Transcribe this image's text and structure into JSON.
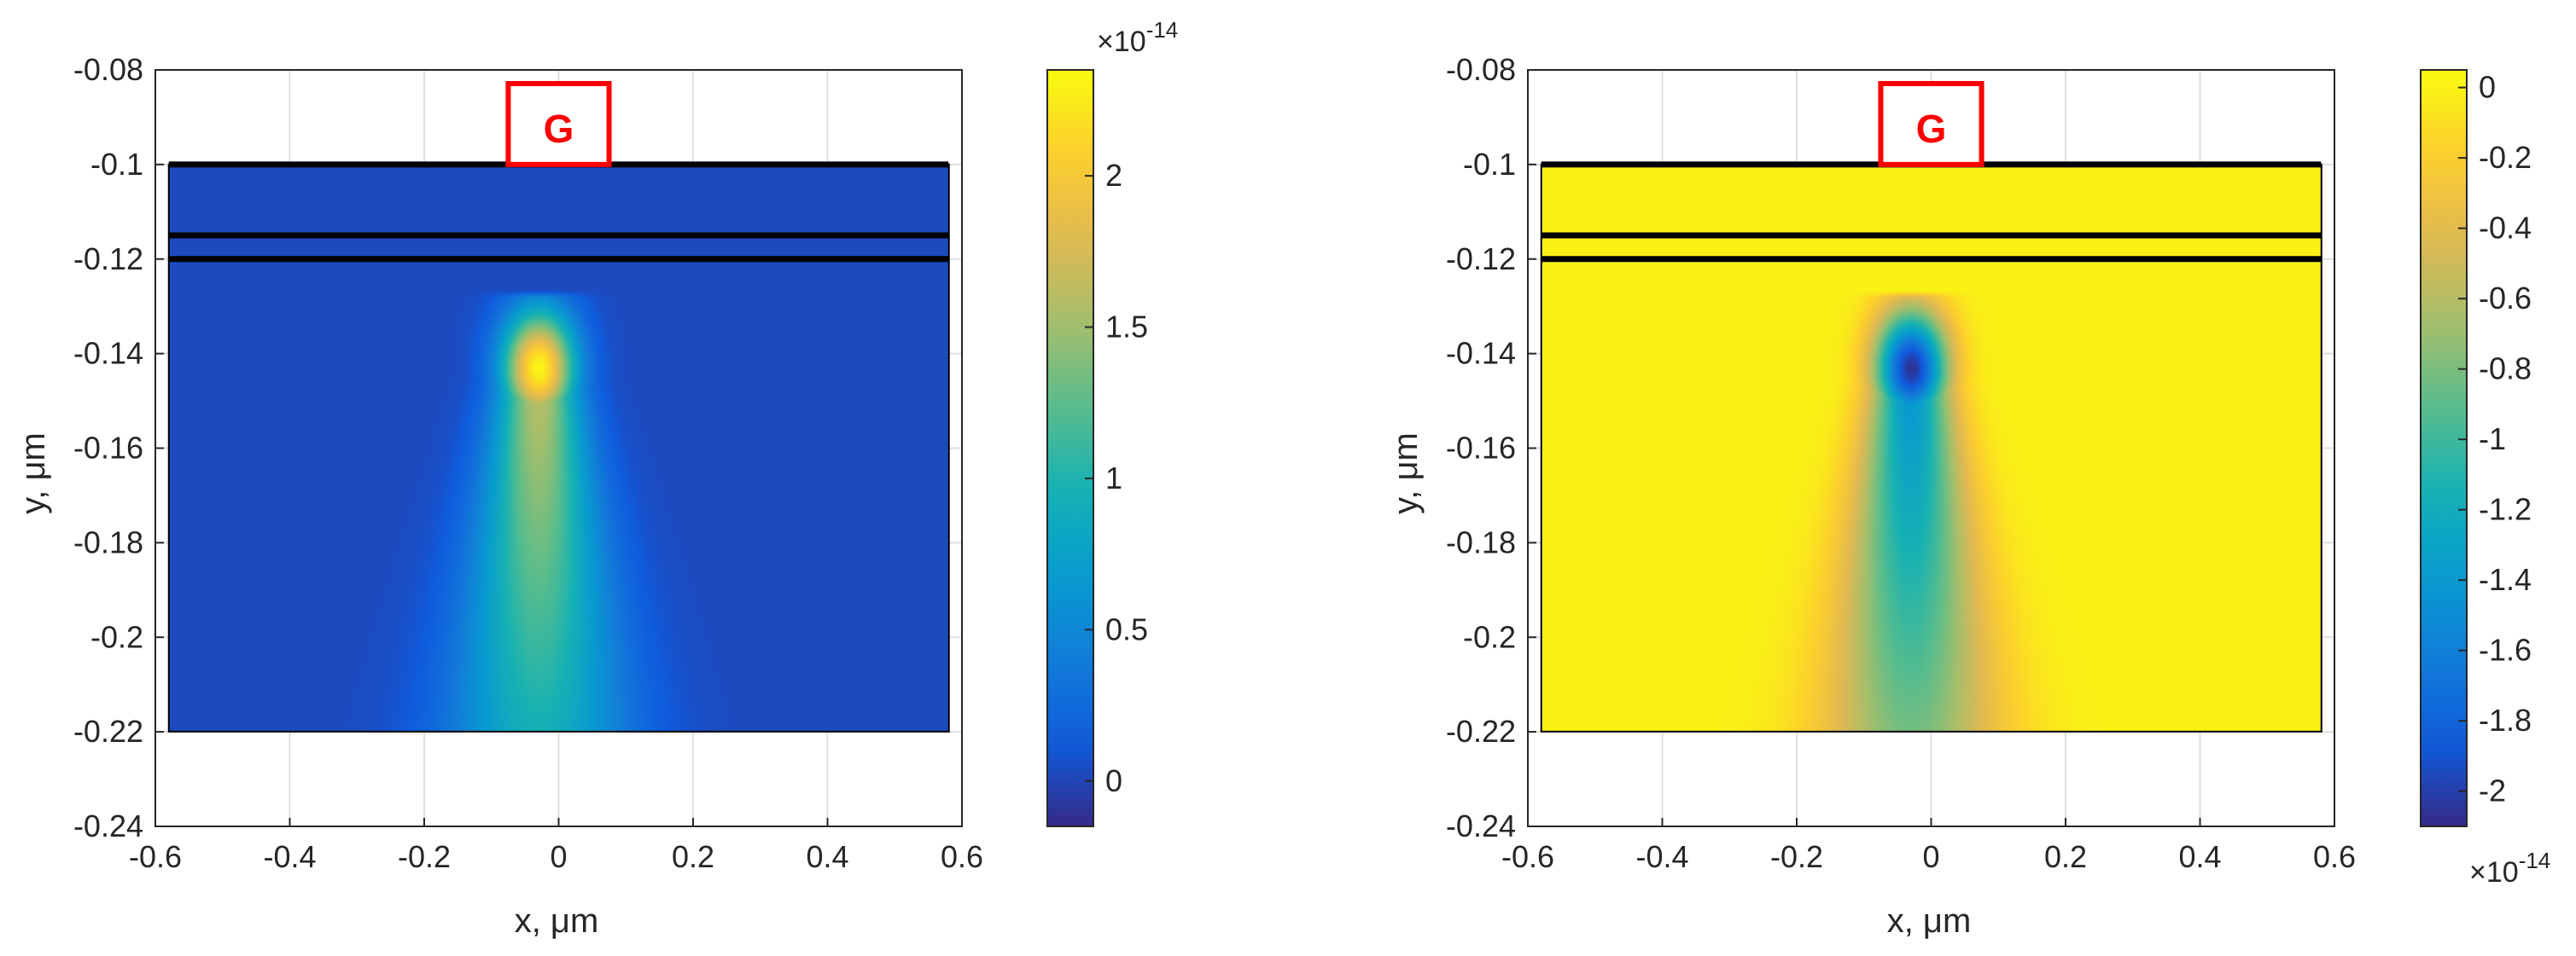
{
  "chart_data": [
    {
      "type": "heatmap",
      "title": "",
      "xlabel": "x, μm",
      "ylabel": "y, μm",
      "xlim": [
        -0.6,
        0.6
      ],
      "ylim": [
        -0.24,
        -0.08
      ],
      "y_reversed": true,
      "grid": true,
      "x_ticks": [
        -0.6,
        -0.4,
        -0.2,
        0,
        0.2,
        0.4,
        0.6
      ],
      "x_tick_labels": [
        "-0.6",
        "-0.4",
        "-0.2",
        "0",
        "0.2",
        "0.4",
        "0.6"
      ],
      "y_ticks": [
        -0.08,
        -0.1,
        -0.12,
        -0.14,
        -0.16,
        -0.18,
        -0.2,
        -0.22,
        -0.24
      ],
      "y_tick_labels": [
        "-0.08",
        "-0.1",
        "-0.12",
        "-0.14",
        "-0.16",
        "-0.18",
        "-0.2",
        "-0.22",
        "-0.24"
      ],
      "domain": {
        "x": [
          -0.58,
          0.58
        ],
        "y": [
          -0.22,
          -0.1
        ]
      },
      "layer_lines_y": [
        -0.1,
        -0.115,
        -0.12
      ],
      "gate_label": "G",
      "gate_x": [
        -0.075,
        0.075
      ],
      "gate_color": "#ff0000",
      "colorbar": {
        "colormap": "parula",
        "range": [
          -0.15,
          2.35
        ],
        "ticks": [
          2,
          1.5,
          1,
          0.5,
          0
        ],
        "tick_labels": [
          "2",
          "1.5",
          "1",
          "0.5",
          "0"
        ],
        "multiplier": "×10",
        "exponent": "-14",
        "multiplier_position": "top"
      },
      "field": {
        "background": 0.03,
        "peak": {
          "x": -0.03,
          "y": -0.143,
          "value": 2.3
        },
        "tail_bottom_value": 0.95
      }
    },
    {
      "type": "heatmap",
      "title": "",
      "xlabel": "x, μm",
      "ylabel": "y, μm",
      "xlim": [
        -0.6,
        0.6
      ],
      "ylim": [
        -0.24,
        -0.08
      ],
      "y_reversed": true,
      "grid": true,
      "x_ticks": [
        -0.6,
        -0.4,
        -0.2,
        0,
        0.2,
        0.4,
        0.6
      ],
      "x_tick_labels": [
        "-0.6",
        "-0.4",
        "-0.2",
        "0",
        "0.2",
        "0.4",
        "0.6"
      ],
      "y_ticks": [
        -0.08,
        -0.1,
        -0.12,
        -0.14,
        -0.16,
        -0.18,
        -0.2,
        -0.22,
        -0.24
      ],
      "y_tick_labels": [
        "-0.08",
        "-0.1",
        "-0.12",
        "-0.14",
        "-0.16",
        "-0.18",
        "-0.2",
        "-0.22",
        "-0.24"
      ],
      "domain": {
        "x": [
          -0.58,
          0.58
        ],
        "y": [
          -0.22,
          -0.1
        ]
      },
      "layer_lines_y": [
        -0.1,
        -0.115,
        -0.12
      ],
      "gate_label": "G",
      "gate_x": [
        -0.075,
        0.075
      ],
      "gate_color": "#ff0000",
      "colorbar": {
        "colormap": "parula",
        "range": [
          -2.1,
          0.05
        ],
        "ticks": [
          0,
          -0.2,
          -0.4,
          -0.6,
          -0.8,
          -1,
          -1.2,
          -1.4,
          -1.6,
          -1.8,
          -2
        ],
        "tick_labels": [
          "0",
          "-0.2",
          "-0.4",
          "-0.6",
          "-0.8",
          "-1",
          "-1.2",
          "-1.4",
          "-1.6",
          "-1.8",
          "-2"
        ],
        "multiplier": "×10",
        "exponent": "-14",
        "multiplier_position": "bottom"
      },
      "field": {
        "background": 0.0,
        "peak": {
          "x": -0.03,
          "y": -0.143,
          "value": -2.05
        },
        "tail_bottom_value": -0.85
      }
    }
  ]
}
